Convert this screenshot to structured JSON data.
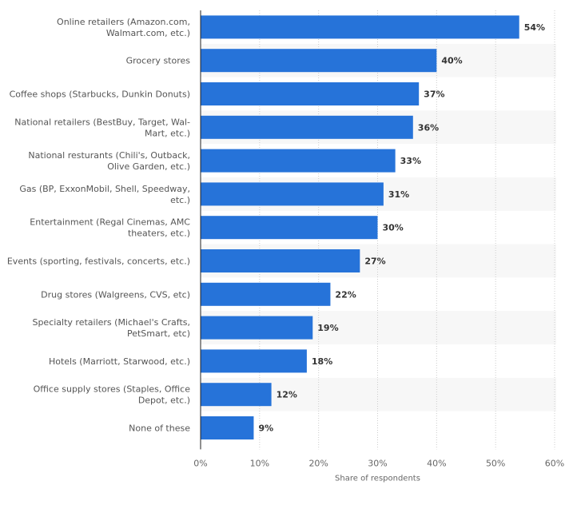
{
  "chart_data": {
    "type": "bar",
    "orientation": "horizontal",
    "title": "",
    "xlabel": "Share of respondents",
    "ylabel": "",
    "xlim": [
      0,
      60
    ],
    "grid": true,
    "bar_color": "#2673d9",
    "categories": [
      [
        "Online retailers (Amazon.com,",
        "Walmart.com, etc.)"
      ],
      [
        "Grocery stores"
      ],
      [
        "Coffee shops (Starbucks, Dunkin Donuts)"
      ],
      [
        "National retailers (BestBuy, Target, Wal-",
        "Mart, etc.)"
      ],
      [
        "National resturants (Chili's, Outback,",
        "Olive Garden, etc.)"
      ],
      [
        "Gas (BP, ExxonMobil, Shell, Speedway,",
        "etc.)"
      ],
      [
        "Entertainment (Regal Cinemas, AMC",
        "theaters, etc.)"
      ],
      [
        "Events (sporting, festivals, concerts, etc.)"
      ],
      [
        "Drug stores (Walgreens, CVS, etc)"
      ],
      [
        "Specialty retailers (Michael's Crafts,",
        "PetSmart, etc)"
      ],
      [
        "Hotels (Marriott, Starwood, etc.)"
      ],
      [
        "Office supply stores (Staples, Office",
        "Depot, etc.)"
      ],
      [
        "None of these"
      ]
    ],
    "values": [
      54,
      40,
      37,
      36,
      33,
      31,
      30,
      27,
      22,
      19,
      18,
      12,
      9
    ],
    "data_labels": [
      "54%",
      "40%",
      "37%",
      "36%",
      "33%",
      "31%",
      "30%",
      "27%",
      "22%",
      "19%",
      "18%",
      "12%",
      "9%"
    ],
    "xticks": [
      0,
      10,
      20,
      30,
      40,
      50,
      60
    ],
    "xtick_labels": [
      "0%",
      "10%",
      "20%",
      "30%",
      "40%",
      "50%",
      "60%"
    ]
  }
}
